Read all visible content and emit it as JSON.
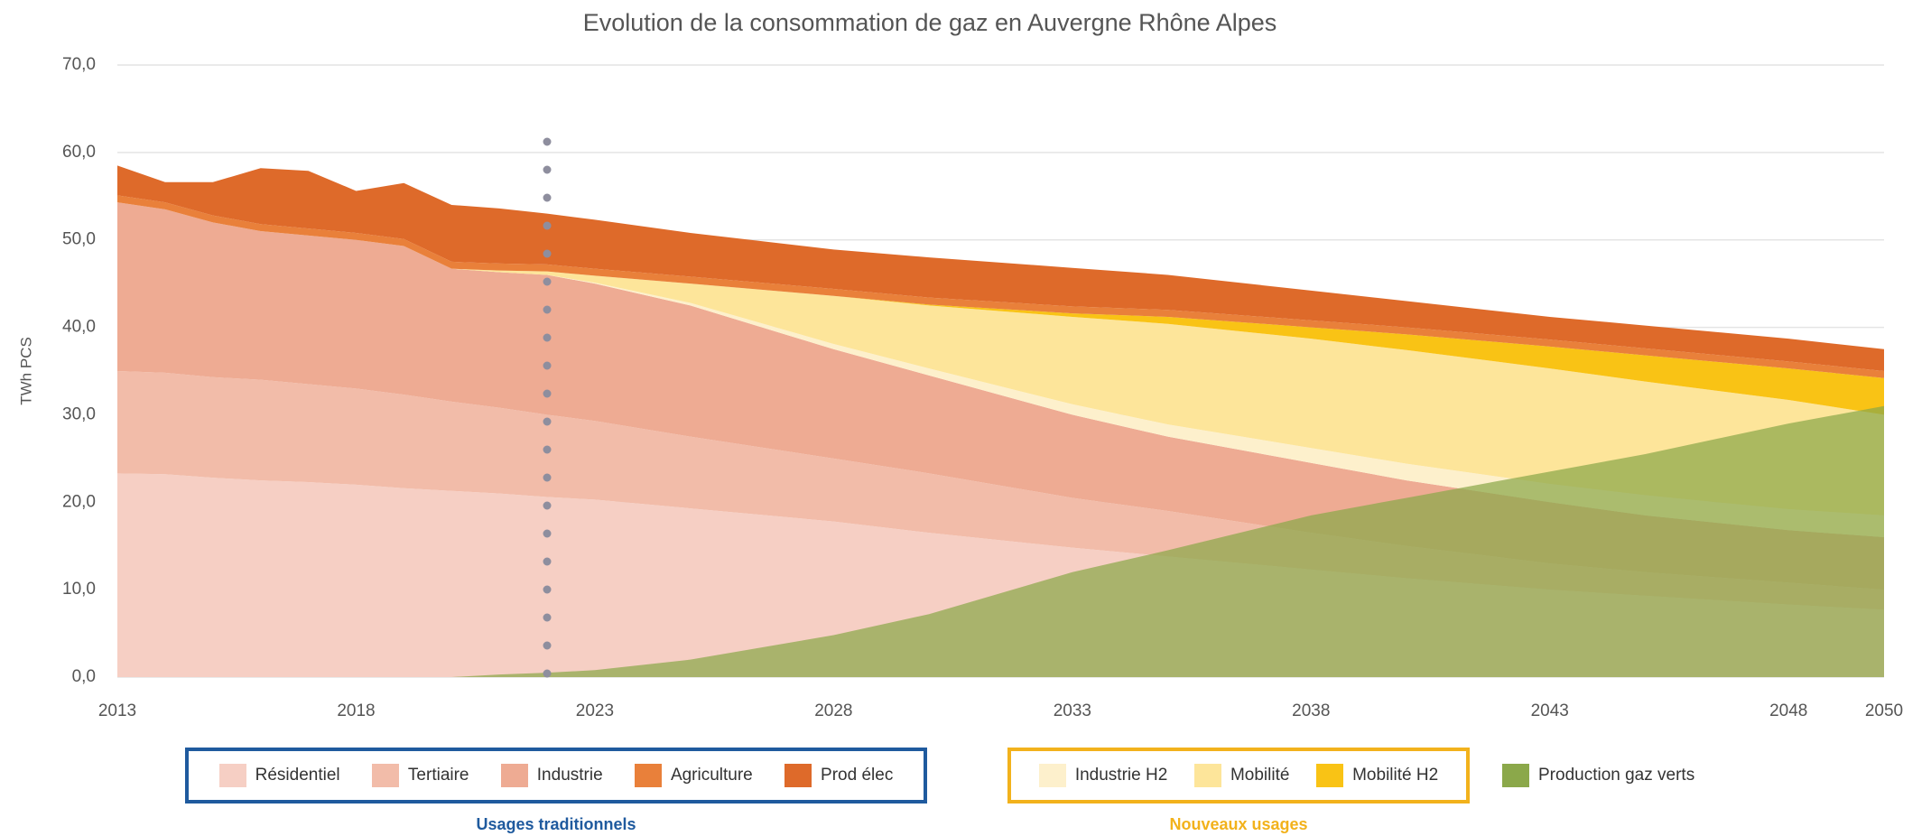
{
  "chart_data": {
    "type": "stacked-area",
    "title": "Evolution de la consommation de gaz en Auvergne Rhône Alpes",
    "y_label": "TWh PCS",
    "x": [
      2013,
      2014,
      2015,
      2016,
      2017,
      2018,
      2019,
      2020,
      2021,
      2022,
      2023,
      2025,
      2028,
      2030,
      2033,
      2035,
      2038,
      2040,
      2043,
      2045,
      2048,
      2050
    ],
    "xlim": [
      2013,
      2050
    ],
    "xticks": [
      2013,
      2018,
      2023,
      2028,
      2033,
      2038,
      2043,
      2048,
      2050
    ],
    "ylim": [
      0,
      70
    ],
    "yticks": [
      {
        "value": 0,
        "label": "0,0"
      },
      {
        "value": 10,
        "label": "10,0"
      },
      {
        "value": 20,
        "label": "20,0"
      },
      {
        "value": 30,
        "label": "30,0"
      },
      {
        "value": 40,
        "label": "40,0"
      },
      {
        "value": 50,
        "label": "50,0"
      },
      {
        "value": 60,
        "label": "60,0"
      },
      {
        "value": 70,
        "label": "70,0"
      }
    ],
    "grid": true,
    "vline_x": 2022,
    "groups": [
      {
        "label": "Usages traditionnels",
        "border": "#1f5a9e",
        "series": [
          {
            "name": "Résidentiel",
            "color": "#f6cfc4",
            "values": [
              23.3,
              23.2,
              22.8,
              22.5,
              22.3,
              22,
              21.6,
              21.3,
              21,
              20.6,
              20.3,
              19.3,
              17.8,
              16.5,
              14.8,
              13.8,
              12.3,
              11.3,
              10,
              9.3,
              8.3,
              7.7
            ]
          },
          {
            "name": "Tertiaire",
            "color": "#f2bca9",
            "values": [
              11.7,
              11.6,
              11.5,
              11.5,
              11.2,
              11,
              10.7,
              10.2,
              9.8,
              9.4,
              9,
              8.2,
              7.2,
              6.8,
              5.7,
              5.2,
              4.2,
              3.7,
              3,
              2.7,
              2.5,
              2.3
            ]
          },
          {
            "name": "Industrie",
            "color": "#eeab93",
            "values": [
              19.3,
              18.7,
              17.7,
              17,
              17,
              17,
              17,
              15.2,
              15.5,
              16,
              15.7,
              15,
              12.5,
              11.2,
              9.5,
              8.5,
              8,
              7.5,
              7,
              6.5,
              6,
              6
            ]
          },
          {
            "name": "Agriculture",
            "color": "#e9803a",
            "values": [
              0.8,
              0.8,
              0.8,
              0.8,
              0.8,
              0.8,
              0.8,
              0.8,
              0.8,
              0.8,
              0.8,
              0.8,
              0.8,
              0.8,
              0.8,
              0.8,
              0.8,
              0.8,
              0.8,
              0.8,
              0.8,
              0.8
            ]
          },
          {
            "name": "Prod élec",
            "color": "#de6a2a",
            "values": [
              3.4,
              2.3,
              3.8,
              6.4,
              6.6,
              4.8,
              6.4,
              6.5,
              6.3,
              5.8,
              5.6,
              5.0,
              4.5,
              4.6,
              4.4,
              4.0,
              3.4,
              3.0,
              2.6,
              2.6,
              2.6,
              2.5
            ]
          }
        ]
      },
      {
        "label": "Nouveaux usages",
        "border": "#f2b21c",
        "series": [
          {
            "name": "Industrie H2",
            "color": "#fdf0cc",
            "values": [
              0,
              0,
              0,
              0,
              0,
              0,
              0,
              0,
              0,
              0,
              0.1,
              0.3,
              0.6,
              0.8,
              1.2,
              1.4,
              1.7,
              1.9,
              2.1,
              2.3,
              2.4,
              2.5
            ]
          },
          {
            "name": "Mobilité",
            "color": "#fde59a",
            "values": [
              0,
              0,
              0,
              0,
              0,
              0,
              0,
              0,
              0.2,
              0.4,
              0.8,
              2.2,
              5.5,
              7.2,
              10,
              11.5,
              12.5,
              13,
              13.2,
              13,
              12.5,
              11.5
            ]
          },
          {
            "name": "Mobilité H2",
            "color": "#f9c315",
            "values": [
              0,
              0,
              0,
              0,
              0,
              0,
              0,
              0,
              0,
              0,
              0,
              0,
              0,
              0.1,
              0.4,
              0.8,
              1.3,
              1.8,
              2.5,
              3,
              3.6,
              4.2
            ]
          }
        ]
      }
    ],
    "overlay_series": [
      {
        "name": "Production gaz verts",
        "color": "#8ba84a",
        "values": [
          0,
          0,
          0,
          0,
          0,
          0,
          0,
          0,
          0.3,
          0.5,
          0.8,
          2,
          4.8,
          7.2,
          12,
          14.5,
          18.5,
          20.5,
          23.5,
          25.5,
          29,
          31
        ]
      }
    ]
  }
}
